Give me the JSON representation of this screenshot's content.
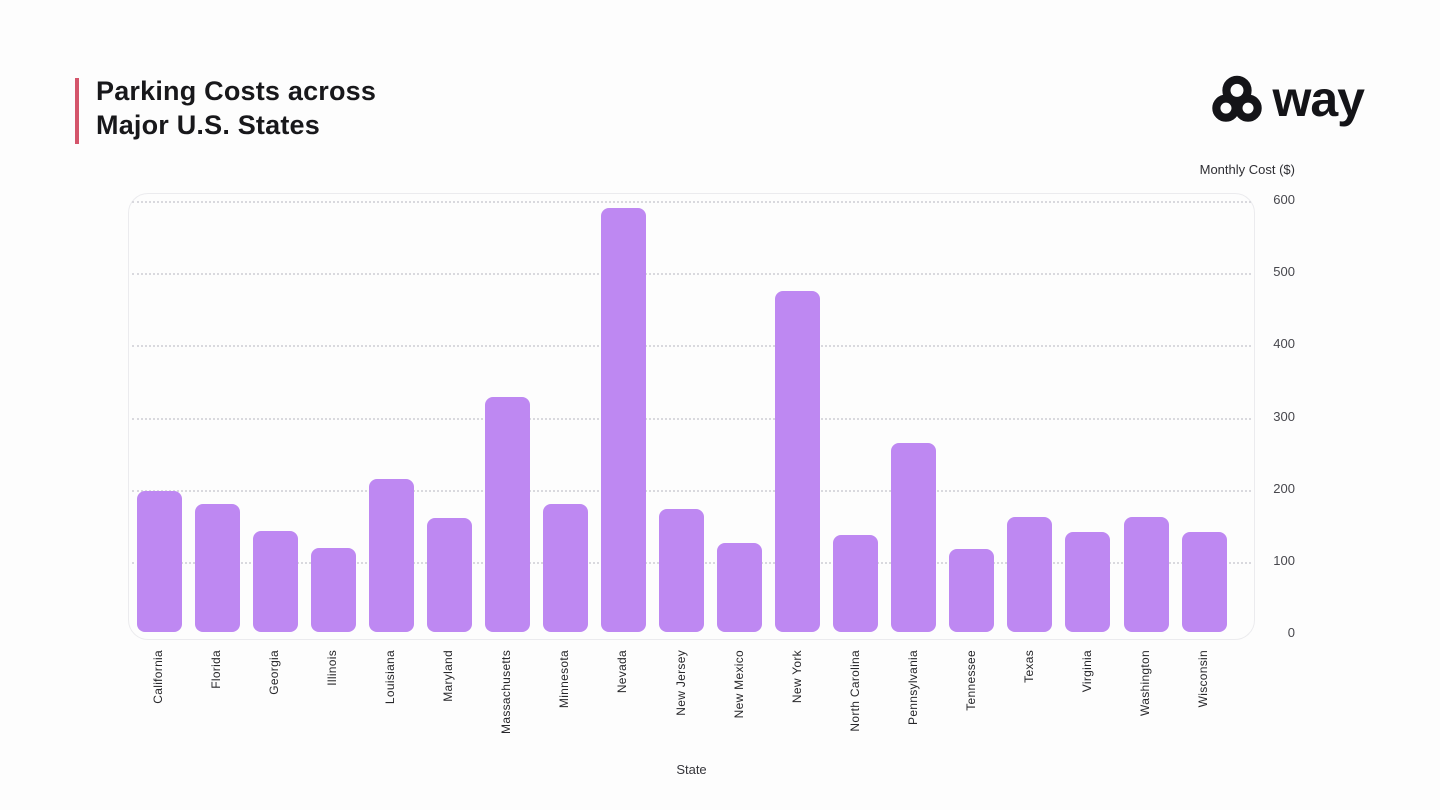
{
  "header": {
    "title_line1": "Parking Costs across",
    "title_line2": "Major U.S. States",
    "accent_color": "#d4556b",
    "logo_text": "way"
  },
  "chart_data": {
    "type": "bar",
    "title": "Parking Costs across Major U.S. States",
    "xlabel": "State",
    "ylabel": "Monthly Cost ($)",
    "ylim": [
      0,
      600
    ],
    "yticks": [
      0,
      100,
      200,
      300,
      400,
      500,
      600
    ],
    "grid": "horizontal-dotted",
    "legend": "none",
    "bar_color": "#be88f2",
    "categories": [
      "California",
      "Florida",
      "Georgia",
      "Illinois",
      "Louisiana",
      "Maryland",
      "Massachusetts",
      "Minnesota",
      "Nevada",
      "New Jersey",
      "New Mexico",
      "New York",
      "North Carolina",
      "Pennsylvania",
      "Tennessee",
      "Texas",
      "Virginia",
      "Washington",
      "Wisconsin"
    ],
    "values": [
      195,
      178,
      140,
      117,
      212,
      158,
      325,
      177,
      588,
      170,
      123,
      472,
      135,
      262,
      115,
      160,
      138,
      159,
      138
    ]
  }
}
